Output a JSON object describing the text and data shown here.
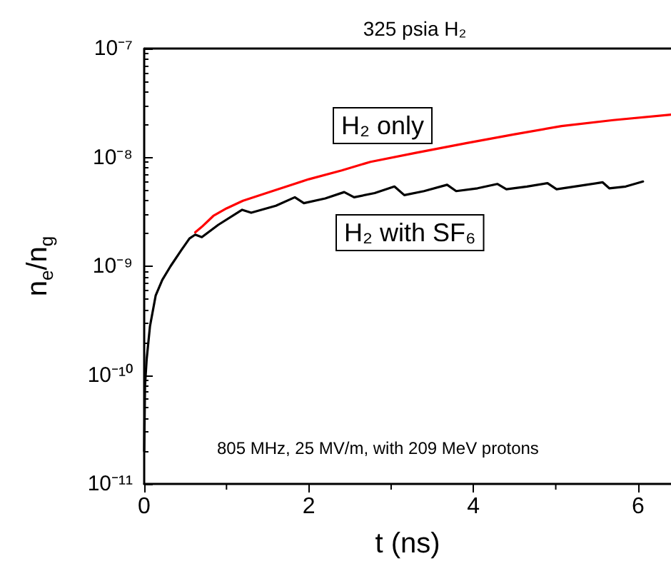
{
  "chart_data": {
    "type": "line",
    "title": "325 psia H₂",
    "xlabel": "t (ns)",
    "ylabel": "n$_{e}$/n$_{g}$",
    "annotations": [
      "805 MHz, 25 MV/m, with 209 MeV protons"
    ],
    "log": "y",
    "grid": false,
    "legend": false,
    "marker": "none",
    "line_style": "solid",
    "xlim": [
      0,
      6.4
    ],
    "xticks": [
      0,
      2,
      4,
      6
    ],
    "ylim": [
      1e-11,
      1e-07
    ],
    "yticks": [
      {
        "value": 1e-11,
        "label": "10⁻¹¹"
      },
      {
        "value": 1e-10,
        "label": "10⁻¹⁰"
      },
      {
        "value": 1e-09,
        "label": "10⁻⁹"
      },
      {
        "value": 1e-08,
        "label": "10⁻⁸"
      },
      {
        "value": 1e-07,
        "label": "10⁻⁷"
      }
    ],
    "series": [
      {
        "name": "H₂ only",
        "color": "#ff0000",
        "x": [
          0.62,
          0.7,
          0.84,
          1.0,
          1.2,
          1.59,
          2.0,
          2.4,
          2.75,
          3.3,
          3.91,
          4.5,
          5.07,
          5.7,
          6.4
        ],
        "values": [
          2.05e-09,
          2.3e-09,
          2.9e-09,
          3.4e-09,
          4e-09,
          5e-09,
          6.3e-09,
          7.6e-09,
          9.1e-09,
          1.1e-08,
          1.35e-08,
          1.63e-08,
          1.94e-08,
          2.2e-08,
          2.47e-08
        ]
      },
      {
        "name": "H₂ with SF₆",
        "color": "#000000",
        "x": [
          0,
          0.01,
          0.03,
          0.07,
          0.14,
          0.22,
          0.32,
          0.45,
          0.55,
          0.62,
          0.7,
          0.9,
          1.19,
          1.3,
          1.6,
          1.83,
          1.94,
          2.2,
          2.43,
          2.55,
          2.8,
          3.04,
          3.16,
          3.4,
          3.68,
          3.79,
          4.05,
          4.29,
          4.4,
          4.65,
          4.9,
          5.01,
          5.3,
          5.57,
          5.65,
          5.85,
          6.06
        ],
        "values": [
          2e-11,
          8e-11,
          1.4e-10,
          2.8e-10,
          5.4e-10,
          7.5e-10,
          1e-09,
          1.4e-09,
          1.8e-09,
          1.95e-09,
          1.85e-09,
          2.4e-09,
          3.3e-09,
          3.1e-09,
          3.6e-09,
          4.3e-09,
          3.8e-09,
          4.2e-09,
          4.8e-09,
          4.3e-09,
          4.7e-09,
          5.4e-09,
          4.5e-09,
          4.9e-09,
          5.6e-09,
          4.9e-09,
          5.2e-09,
          5.7e-09,
          5.1e-09,
          5.4e-09,
          5.8e-09,
          5.1e-09,
          5.5e-09,
          5.9e-09,
          5.2e-09,
          5.4e-09,
          6e-09
        ]
      }
    ]
  }
}
